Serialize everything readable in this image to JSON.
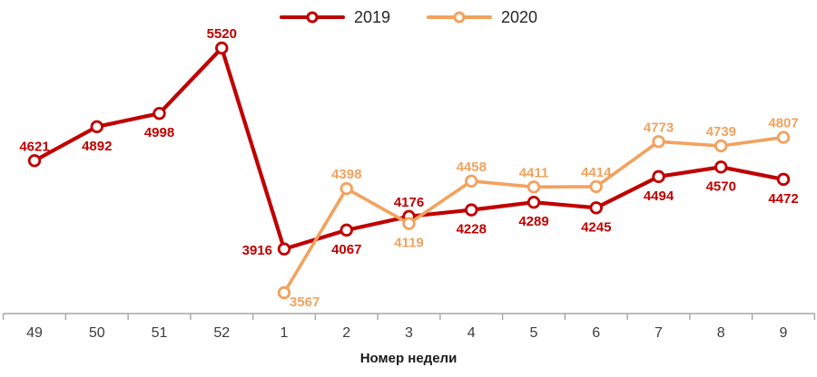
{
  "chart_data": {
    "type": "line",
    "title": "",
    "xlabel": "Номер недели",
    "ylabel": "",
    "categories": [
      "49",
      "50",
      "51",
      "52",
      "1",
      "2",
      "3",
      "4",
      "5",
      "6",
      "7",
      "8",
      "9"
    ],
    "series": [
      {
        "name": "2019",
        "color": "#C00000",
        "values": [
          4621,
          4892,
          4998,
          5520,
          3916,
          4067,
          4176,
          4228,
          4289,
          4245,
          4494,
          4570,
          4472
        ],
        "label_positions": [
          "above",
          "below",
          "below",
          "above",
          "left",
          "below",
          "above",
          "below",
          "below",
          "below",
          "below",
          "below",
          "below"
        ]
      },
      {
        "name": "2020",
        "color": "#F2A25E",
        "values": [
          null,
          null,
          null,
          null,
          3567,
          4398,
          4119,
          4458,
          4411,
          4414,
          4773,
          4739,
          4807
        ],
        "label_positions": [
          null,
          null,
          null,
          null,
          "below-right",
          "above",
          "below",
          "above",
          "above",
          "above",
          "above",
          "above",
          "above"
        ]
      }
    ],
    "ylim": [
      3567,
      5520
    ],
    "grid": false,
    "legend_position": "top-center",
    "axis_color": "#A6A6A6",
    "tick_label_color": "#3D3D3D",
    "marker": "circle-open"
  }
}
